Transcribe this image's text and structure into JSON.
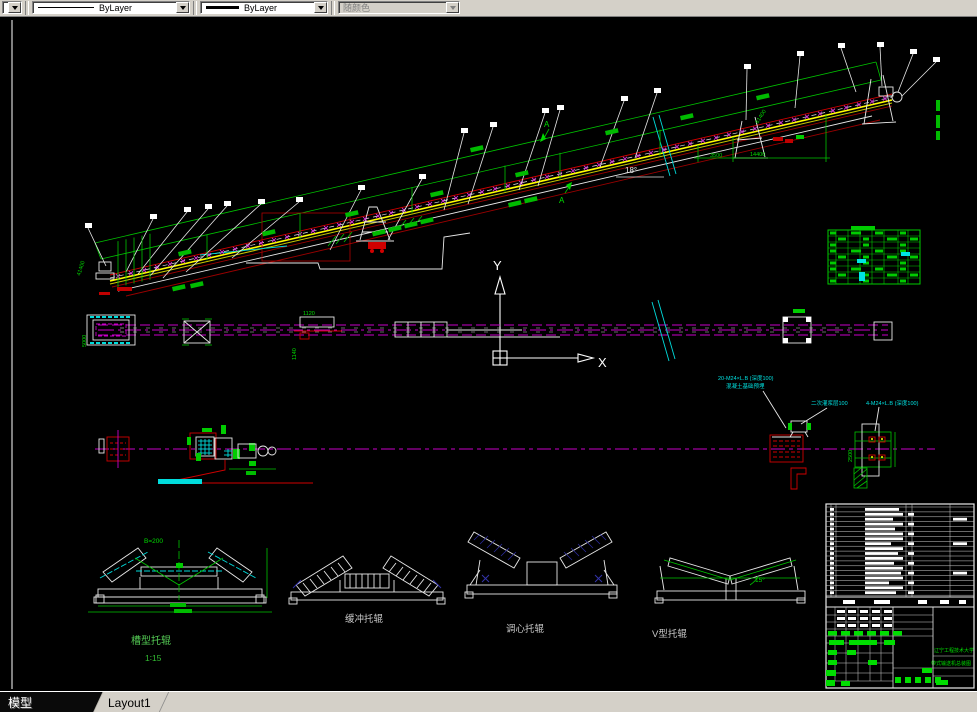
{
  "toolbar": {
    "linetype": {
      "value": "ByLayer"
    },
    "lineweight": {
      "value": "ByLayer"
    },
    "plotstyle": {
      "value": "随颜色"
    }
  },
  "statusbar": {
    "model_tab": "模型",
    "layout_tab": "Layout1"
  },
  "ucs": {
    "x_label": "X",
    "y_label": "Y"
  },
  "elevation": {
    "angle": "18°",
    "section_marker_1": "A",
    "section_marker_2": "A",
    "dim_tail": "41400",
    "dim_head_1": "3500",
    "dim_head_2": "14400",
    "dim_head_elev": "61400"
  },
  "plan": {
    "dim_width": "5000",
    "dim_chute": "1120",
    "dim_chute_len": "1140"
  },
  "foundation": {
    "note_1": "20-M24×L.B (深度100)",
    "note_2": "混凝土基础预埋",
    "note_3": "二次灌浆层100",
    "note_4": "4-M24×L.B (深度100)",
    "dim_anchor": "2500"
  },
  "details": {
    "d1": {
      "label": "槽型托辊",
      "scale": "1∶15",
      "dim": "B=200"
    },
    "d2": {
      "label": "缓冲托辊"
    },
    "d3": {
      "label": "调心托辊"
    },
    "d4": {
      "label": "V型托辊",
      "angle": "15°"
    }
  },
  "titleblock": {
    "org": "辽宁工程技术大学",
    "drawing_title": "带式输送机总装图"
  },
  "colors": {
    "dim_green": "#00c400",
    "belt_yellow": "#ffff00",
    "centerline_magenta": "#c800c8",
    "detail_red": "#d00000",
    "note_cyan": "#00e0e0"
  }
}
